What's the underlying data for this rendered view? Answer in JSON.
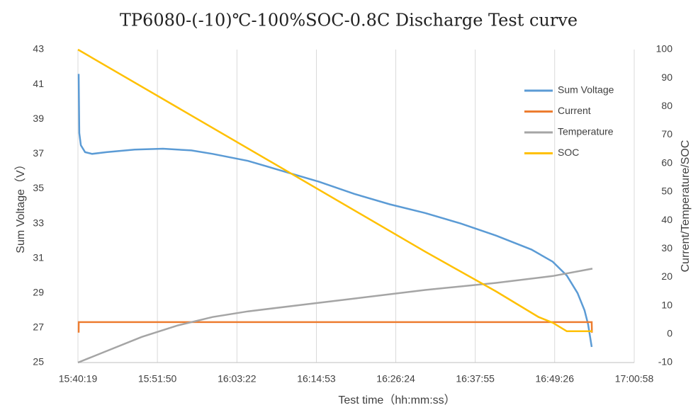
{
  "chart_data": {
    "type": "line",
    "title": "TP6080-(-10)℃-100%SOC-0.8C Discharge Test curve",
    "x_label": "Test time（hh:mm:ss）",
    "y_label": "Sum Voltage（V）",
    "y2_label": "Current/Temperature/SOC",
    "xlim": [
      56419,
      61258
    ],
    "xticks": [
      {
        "value": 56419,
        "label": "15:40:19"
      },
      {
        "value": 57110,
        "label": "15:51:50"
      },
      {
        "value": 57802,
        "label": "16:03:22"
      },
      {
        "value": 58493,
        "label": "16:14:53"
      },
      {
        "value": 59184,
        "label": "16:26:24"
      },
      {
        "value": 59875,
        "label": "16:37:55"
      },
      {
        "value": 60566,
        "label": "16:49:26"
      },
      {
        "value": 61258,
        "label": "17:00:58"
      }
    ],
    "ylim": [
      25,
      43
    ],
    "yticks": [
      25,
      27,
      29,
      31,
      33,
      35,
      37,
      39,
      41,
      43
    ],
    "y2lim": [
      -10,
      100
    ],
    "y2ticks": [
      -10,
      0,
      10,
      20,
      30,
      40,
      50,
      60,
      70,
      80,
      90,
      100
    ],
    "grid": "x",
    "legend": "upper right",
    "series": [
      {
        "name": "Sum Voltage",
        "color": "#5b9bd5",
        "axis": "y",
        "x": [
          56425,
          56431,
          56444,
          56481,
          56542,
          56666,
          56912,
          57159,
          57405,
          57590,
          57898,
          58207,
          58515,
          58823,
          59131,
          59439,
          59748,
          60056,
          60364,
          60549,
          60672,
          60765,
          60826,
          60857,
          60888
        ],
        "values": [
          41.6,
          38.2,
          37.5,
          37.1,
          37.0,
          37.1,
          37.25,
          37.3,
          37.2,
          37.0,
          36.6,
          36.0,
          35.4,
          34.7,
          34.1,
          33.6,
          33.0,
          32.3,
          31.5,
          30.8,
          30.0,
          29.0,
          28.0,
          27.2,
          25.9
        ]
      },
      {
        "name": "Current",
        "color": "#ed7d31",
        "axis": "y2",
        "x": [
          56425,
          56426,
          60888,
          60890
        ],
        "values": [
          0.5,
          4.2,
          4.2,
          0.5
        ]
      },
      {
        "name": "Temperature",
        "color": "#a5a5a5",
        "axis": "y2",
        "x": [
          56419,
          56666,
          56974,
          57282,
          57590,
          57898,
          58391,
          58823,
          59439,
          60056,
          60549,
          60894
        ],
        "values": [
          -10,
          -6,
          -1,
          3,
          6,
          8,
          10.4,
          12.5,
          15.5,
          18,
          20.4,
          23
        ]
      },
      {
        "name": "SOC",
        "color": "#ffc000",
        "axis": "y2",
        "x": [
          56419,
          58207,
          59439,
          60056,
          60426,
          60549,
          60672,
          60894
        ],
        "values": [
          100,
          58,
          29,
          15,
          6,
          4,
          1,
          1
        ]
      }
    ]
  }
}
